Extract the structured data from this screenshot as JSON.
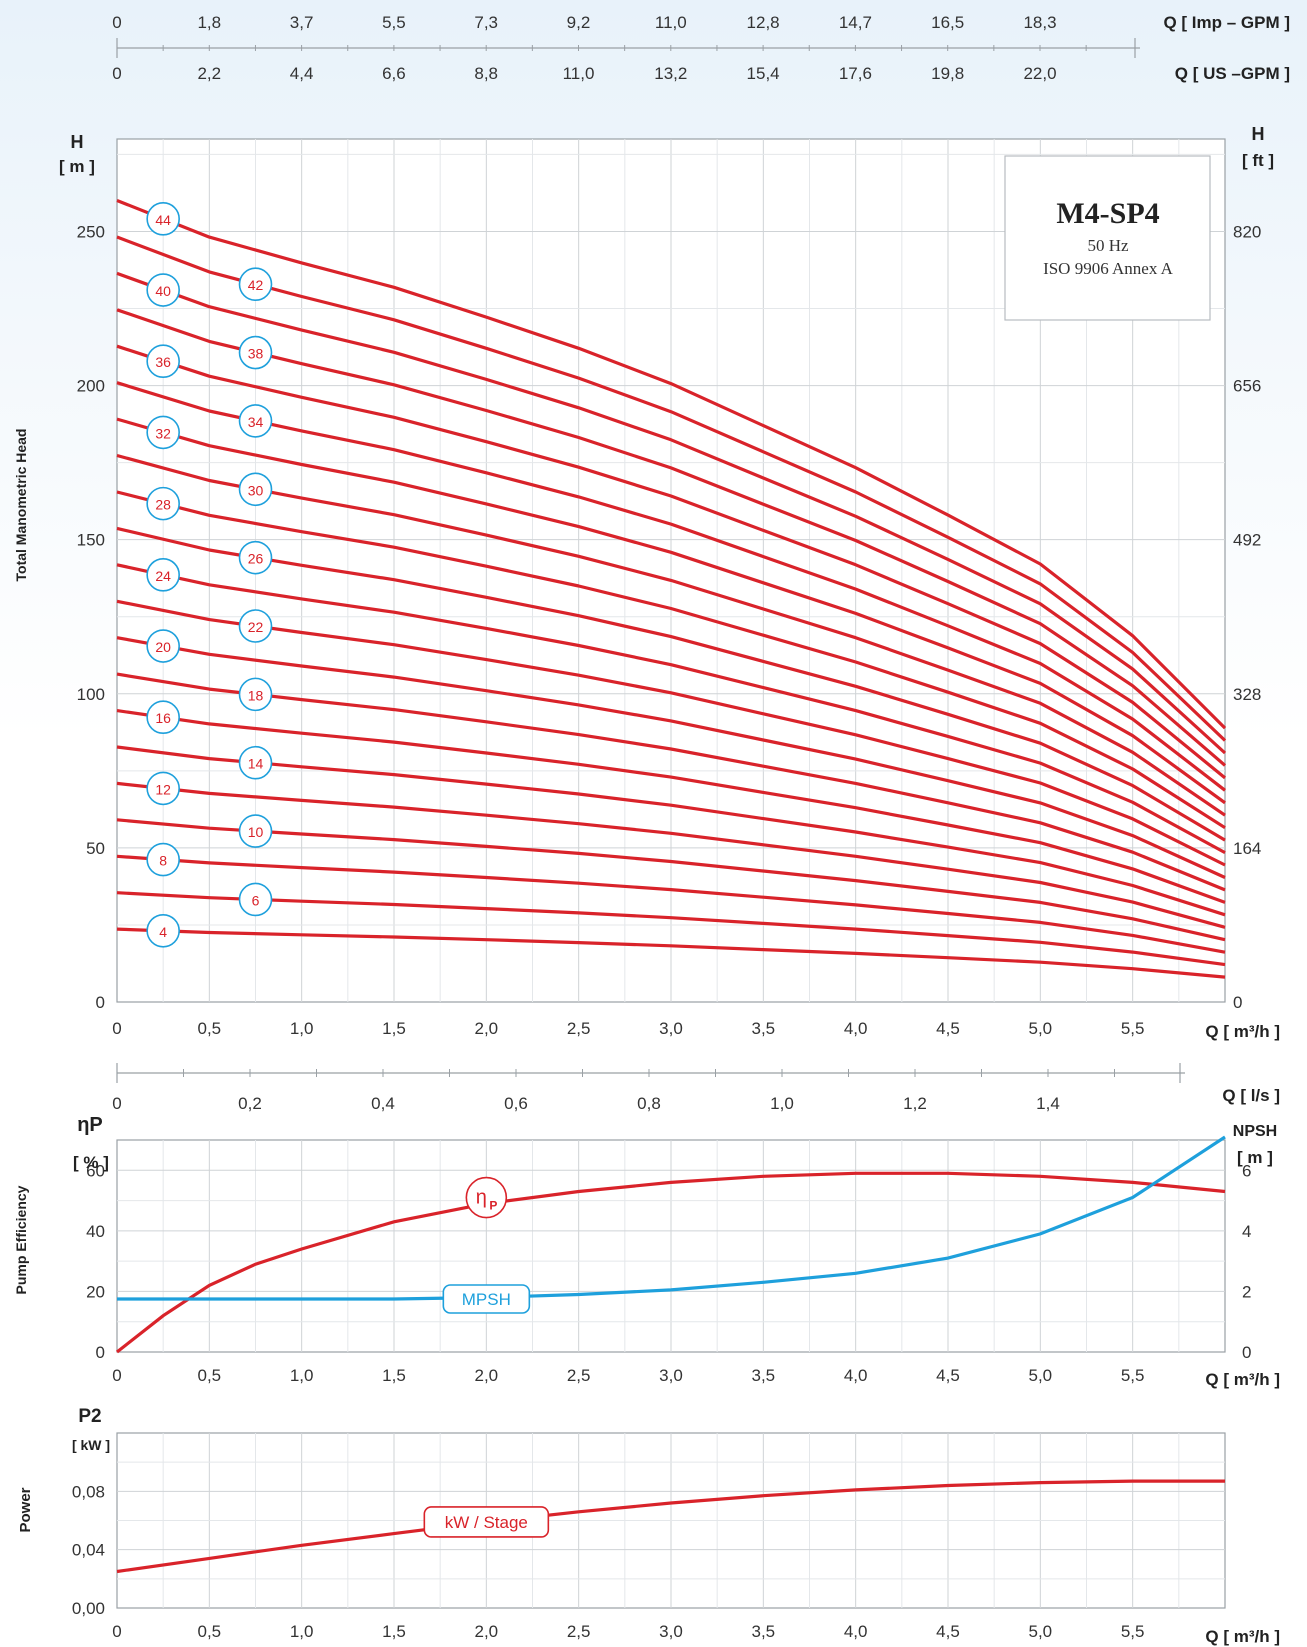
{
  "top_axes": {
    "imp_ticks": [
      "0",
      "1,8",
      "3,7",
      "5,5",
      "7,3",
      "9,2",
      "11,0",
      "12,8",
      "14,7",
      "16,5",
      "18,3"
    ],
    "imp_label": "Q [ Imp – GPM ]",
    "us_ticks": [
      "0",
      "2,2",
      "4,4",
      "6,6",
      "8,8",
      "11,0",
      "13,2",
      "15,4",
      "17,6",
      "19,8",
      "22,0"
    ],
    "us_label": "Q [  US –GPM ]"
  },
  "legend": {
    "model": "M4-SP4",
    "freq": "50 Hz",
    "standard": "ISO 9906 Annex A"
  },
  "q_ticks": [
    "0",
    "0,5",
    "1,0",
    "1,5",
    "2,0",
    "2,5",
    "3,0",
    "3,5",
    "4,0",
    "4,5",
    "5,0",
    "5,5"
  ],
  "q_label": "Q [ m³/h ]",
  "ls_ticks": [
    "0",
    "0,2",
    "0,4",
    "0,6",
    "0,8",
    "1,0",
    "1,2",
    "1,4"
  ],
  "ls_label": "Q [   l/s  ]",
  "colors": {
    "curve": "#d9232a",
    "npsh": "#1ea0dc",
    "grid": "#cfd3d6"
  },
  "chart_data": [
    {
      "type": "line",
      "ylabel": "Total Manometric Head",
      "y_unit_left": "H",
      "y_unit_left_sub": "[ m ]",
      "y_unit_right": "H",
      "y_unit_right_sub": "[ ft ]",
      "xlim": [
        0,
        6
      ],
      "ylim": [
        0,
        280
      ],
      "y_ticks_m": [
        "0",
        "50",
        "100",
        "150",
        "200",
        "250"
      ],
      "y_ticks_ft": [
        "0",
        "164",
        "328",
        "492",
        "656",
        "820"
      ],
      "x": [
        0,
        0.5,
        1.0,
        1.5,
        2.0,
        2.5,
        3.0,
        3.5,
        4.0,
        4.5,
        5.0,
        5.5,
        6.0
      ],
      "stage_shape": [
        5.91,
        5.64,
        5.45,
        5.27,
        5.05,
        4.82,
        4.56,
        4.25,
        3.94,
        3.59,
        3.23,
        2.7,
        2.02
      ],
      "stages": [
        4,
        6,
        8,
        10,
        12,
        14,
        16,
        18,
        20,
        22,
        24,
        26,
        28,
        30,
        32,
        34,
        36,
        38,
        40,
        42,
        44
      ]
    },
    {
      "type": "line",
      "ylabel": "Pump Efficiency",
      "y_unit_left": "ηP",
      "y_unit_left_sub": "[ % ]",
      "y_unit_right": "NPSH",
      "y_unit_right_sub": "[ m ]",
      "xlim": [
        0,
        6
      ],
      "ylim": [
        0,
        70
      ],
      "y_ticks_left": [
        "0",
        "20",
        "40",
        "60"
      ],
      "y_ticks_right": [
        "0",
        "2",
        "4",
        "6"
      ],
      "series": [
        {
          "name": "ηP",
          "x": [
            0,
            0.25,
            0.5,
            0.75,
            1.0,
            1.5,
            2.0,
            2.5,
            3.0,
            3.5,
            4.0,
            4.5,
            5.0,
            5.5,
            6.0
          ],
          "values": [
            0,
            12,
            22,
            29,
            34,
            43,
            49,
            53,
            56,
            58,
            59,
            59,
            58,
            56,
            53
          ]
        },
        {
          "name": "MPSH",
          "x": [
            0,
            0.5,
            1.0,
            1.5,
            2.0,
            2.5,
            3.0,
            3.5,
            4.0,
            4.5,
            5.0,
            5.5,
            6.0
          ],
          "values": [
            1.75,
            1.75,
            1.75,
            1.75,
            1.8,
            1.9,
            2.05,
            2.3,
            2.6,
            3.1,
            3.9,
            5.1,
            7.1
          ]
        }
      ]
    },
    {
      "type": "line",
      "ylabel": "Power",
      "y_unit_left": "P2",
      "y_unit_left_sub": "[ kW ]",
      "xlim": [
        0,
        6
      ],
      "ylim": [
        0,
        0.12
      ],
      "y_ticks": [
        "0,00",
        "0,04",
        "0,08"
      ],
      "series": [
        {
          "name": "kW / Stage",
          "x": [
            0,
            0.5,
            1.0,
            1.5,
            2.0,
            2.5,
            3.0,
            3.5,
            4.0,
            4.5,
            5.0,
            5.5,
            6.0
          ],
          "values": [
            0.025,
            0.034,
            0.043,
            0.051,
            0.059,
            0.066,
            0.072,
            0.077,
            0.081,
            0.084,
            0.086,
            0.087,
            0.087
          ]
        }
      ]
    }
  ]
}
